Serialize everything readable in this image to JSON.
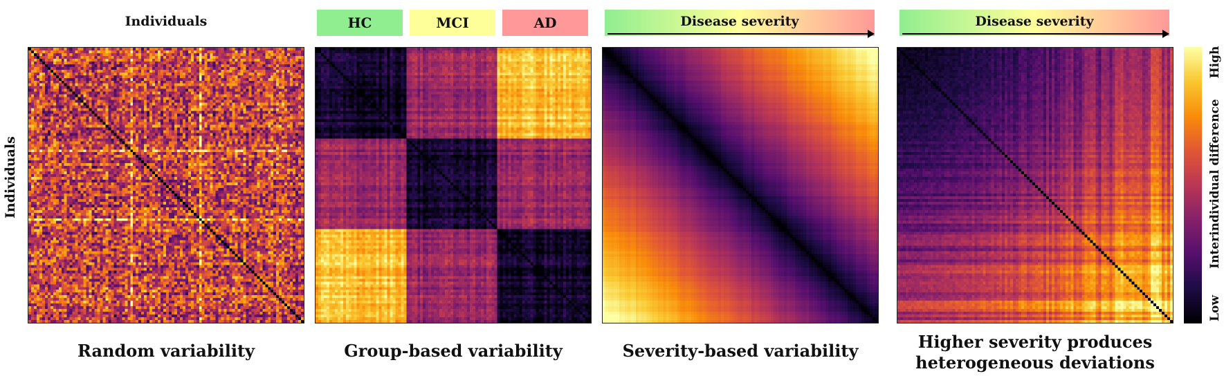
{
  "panels": [
    {
      "caption": "Random variability"
    },
    {
      "caption": "Group-based variability"
    },
    {
      "caption": "Severity-based variability"
    },
    {
      "caption_line1": "Higher severity produces",
      "caption_line2": "heterogeneous deviations"
    }
  ],
  "header": {
    "individuals": "Individuals",
    "groups": [
      {
        "label": "HC",
        "color": "#90ee90"
      },
      {
        "label": "MCI",
        "color": "#ffff99"
      },
      {
        "label": "AD",
        "color": "#ff9999"
      }
    ],
    "severity_label": "Disease severity",
    "severity_gradient": [
      "#90ee90",
      "#ffff99",
      "#ff9999"
    ]
  },
  "y_axis_label": "Individuals",
  "colorbar": {
    "high": "High",
    "low": "Low",
    "label": "Interindividual difference",
    "colormap": "inferno"
  }
}
